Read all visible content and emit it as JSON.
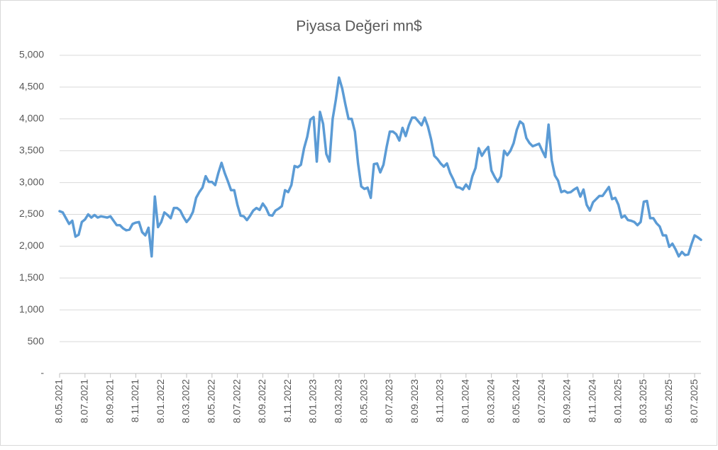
{
  "chart_data": {
    "type": "line",
    "title": "Piyasa Değeri mn$",
    "color": "#5b9bd5",
    "grid": true,
    "ylim": [
      0,
      5000
    ],
    "yticks": [
      {
        "value": 0,
        "label": "-"
      },
      500,
      {
        "value": 1000,
        "label": "1,000"
      },
      {
        "value": 1500,
        "label": "1,500"
      },
      {
        "value": 2000,
        "label": "2,000"
      },
      {
        "value": 2500,
        "label": "2,500"
      },
      {
        "value": 3000,
        "label": "3,000"
      },
      {
        "value": 3500,
        "label": "3,500"
      },
      {
        "value": 4000,
        "label": "4,000"
      },
      {
        "value": 4500,
        "label": "4,500"
      },
      {
        "value": 5000,
        "label": "5,000"
      }
    ],
    "categories": [
      "8.05.2021",
      null,
      null,
      null,
      null,
      null,
      null,
      null,
      "8.07.2021",
      null,
      null,
      null,
      null,
      null,
      null,
      null,
      "8.09.2021",
      null,
      null,
      null,
      null,
      null,
      null,
      null,
      "8.11.2021",
      null,
      null,
      null,
      null,
      null,
      null,
      null,
      "8.01.2022",
      null,
      null,
      null,
      null,
      null,
      null,
      null,
      "8.03.2022",
      null,
      null,
      null,
      null,
      null,
      null,
      null,
      "8.05.2022",
      null,
      null,
      null,
      null,
      null,
      null,
      null,
      "8.07.2022",
      null,
      null,
      null,
      null,
      null,
      null,
      null,
      "8.09.2022",
      null,
      null,
      null,
      null,
      null,
      null,
      null,
      "8.11.2022",
      null,
      null,
      null,
      null,
      null,
      null,
      null,
      "8.01.2023",
      null,
      null,
      null,
      null,
      null,
      null,
      null,
      "8.03.2023",
      null,
      null,
      null,
      null,
      null,
      null,
      null,
      "8.05.2023",
      null,
      null,
      null,
      null,
      null,
      null,
      null,
      "8.07.2023",
      null,
      null,
      null,
      null,
      null,
      null,
      null,
      "8.09.2023",
      null,
      null,
      null,
      null,
      null,
      null,
      null,
      "8.11.2023",
      null,
      null,
      null,
      null,
      null,
      null,
      null,
      "8.01.2024",
      null,
      null,
      null,
      null,
      null,
      null,
      null,
      "8.03.2024",
      null,
      null,
      null,
      null,
      null,
      null,
      null,
      "8.05.2024",
      null,
      null,
      null,
      null,
      null,
      null,
      null,
      "8.07.2024",
      null,
      null,
      null,
      null,
      null,
      null,
      null,
      "8.09.2024",
      null,
      null,
      null,
      null,
      null,
      null,
      null,
      "8.11.2024",
      null,
      null,
      null,
      null,
      null,
      null,
      null,
      "8.01.2025",
      null,
      null,
      null,
      null,
      null,
      null,
      null,
      "8.03.2025",
      null,
      null,
      null,
      null,
      null,
      null,
      null,
      "8.05.2025",
      null,
      null,
      null,
      null,
      null,
      null,
      null,
      "8.07.2025",
      null,
      null
    ],
    "values": [
      2550,
      2530,
      2440,
      2350,
      2400,
      2150,
      2180,
      2380,
      2420,
      2500,
      2450,
      2490,
      2450,
      2470,
      2460,
      2450,
      2470,
      2400,
      2330,
      2330,
      2280,
      2250,
      2260,
      2350,
      2370,
      2380,
      2220,
      2170,
      2290,
      1840,
      2780,
      2300,
      2380,
      2530,
      2490,
      2440,
      2600,
      2600,
      2560,
      2460,
      2380,
      2440,
      2540,
      2760,
      2850,
      2920,
      3100,
      3010,
      3010,
      2960,
      3150,
      3310,
      3150,
      3020,
      2880,
      2880,
      2650,
      2480,
      2470,
      2410,
      2480,
      2560,
      2600,
      2570,
      2670,
      2600,
      2490,
      2480,
      2560,
      2590,
      2630,
      2880,
      2850,
      2960,
      3260,
      3240,
      3280,
      3540,
      3720,
      3990,
      4030,
      3330,
      4110,
      3920,
      3450,
      3330,
      4000,
      4300,
      4650,
      4480,
      4230,
      4000,
      4000,
      3800,
      3300,
      2940,
      2900,
      2920,
      2760,
      3290,
      3300,
      3160,
      3280,
      3560,
      3800,
      3800,
      3760,
      3660,
      3860,
      3730,
      3900,
      4020,
      4020,
      3960,
      3900,
      4020,
      3880,
      3680,
      3420,
      3370,
      3300,
      3250,
      3300,
      3150,
      3050,
      2930,
      2920,
      2890,
      2970,
      2900,
      3100,
      3230,
      3540,
      3420,
      3500,
      3560,
      3190,
      3090,
      3010,
      3100,
      3500,
      3430,
      3500,
      3620,
      3830,
      3960,
      3920,
      3700,
      3620,
      3570,
      3590,
      3610,
      3500,
      3400,
      3910,
      3350,
      3110,
      3030,
      2850,
      2870,
      2840,
      2850,
      2890,
      2920,
      2780,
      2890,
      2650,
      2560,
      2690,
      2740,
      2790,
      2790,
      2860,
      2930,
      2740,
      2760,
      2650,
      2450,
      2480,
      2410,
      2400,
      2380,
      2330,
      2380,
      2700,
      2710,
      2440,
      2440,
      2360,
      2310,
      2170,
      2170,
      1990,
      2040,
      1950,
      1840,
      1910,
      1860,
      1870,
      2030,
      2170,
      2140,
      2100
    ]
  }
}
